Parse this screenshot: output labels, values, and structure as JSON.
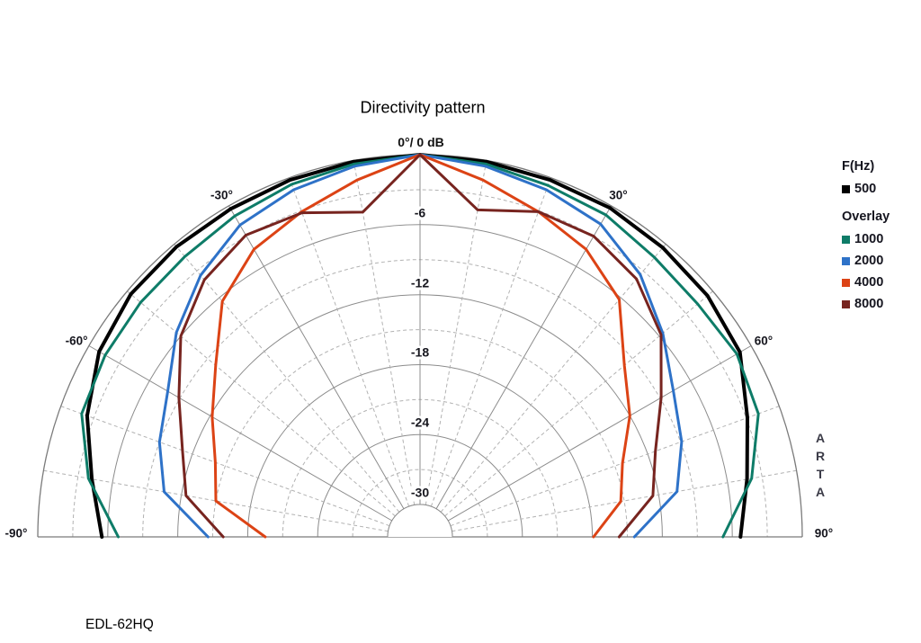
{
  "title": "Directivity pattern",
  "footer_label": "EDL-62HQ",
  "watermark": "ARTA",
  "legend": {
    "primary_heading": "F(Hz)",
    "primary_items": [
      {
        "label": "500",
        "color": "#000000"
      }
    ],
    "overlay_heading": "Overlay",
    "overlay_items": [
      {
        "label": "1000",
        "color": "#0e7c68"
      },
      {
        "label": "2000",
        "color": "#2e72c8"
      },
      {
        "label": "4000",
        "color": "#dc4315"
      },
      {
        "label": "8000",
        "color": "#77241f"
      }
    ]
  },
  "chart_data": {
    "type": "line",
    "subtype": "polar-directivity-half",
    "title": "Directivity pattern",
    "apex_label": "0°/ 0 dB",
    "angle_axis": {
      "unit": "deg",
      "range": [
        -90,
        90
      ],
      "solid_spokes_deg": [
        -90,
        -60,
        -30,
        0,
        30,
        60,
        90
      ],
      "dashed_spokes_deg": [
        -80,
        -70,
        -50,
        -40,
        -20,
        -10,
        10,
        20,
        40,
        50,
        70,
        80
      ],
      "tick_labels": [
        {
          "angle": -90,
          "text": "-90°"
        },
        {
          "angle": -60,
          "text": "-60°"
        },
        {
          "angle": -30,
          "text": "-30°"
        },
        {
          "angle": 30,
          "text": "30°"
        },
        {
          "angle": 60,
          "text": "60°"
        },
        {
          "angle": 90,
          "text": "90°"
        }
      ]
    },
    "db_axis": {
      "unit": "dB",
      "max": 0,
      "min": -30,
      "solid_rings_db": [
        -6,
        -12,
        -18,
        -24,
        -30
      ],
      "dashed_rings_db": [
        -3,
        -9,
        -15,
        -21,
        -27
      ],
      "ring_labels": [
        {
          "db": -6,
          "text": "-6"
        },
        {
          "db": -12,
          "text": "-12"
        },
        {
          "db": -18,
          "text": "-18"
        },
        {
          "db": -24,
          "text": "-24"
        },
        {
          "db": -30,
          "text": "-30"
        }
      ]
    },
    "grid": {
      "solid_color": "#8c8c8c",
      "dashed_color": "#b2b2b2",
      "outline_color": "#7a7a7a"
    },
    "angles_deg": [
      -90,
      -80,
      -70,
      -60,
      -50,
      -40,
      -30,
      -20,
      -10,
      0,
      10,
      20,
      30,
      40,
      50,
      60,
      70,
      80,
      90
    ],
    "series": [
      {
        "name": "500",
        "freq_hz": 500,
        "color": "#000000",
        "width": 4,
        "values_db": [
          -5.5,
          -4.2,
          -2.4,
          -1.0,
          -0.4,
          -0.3,
          -0.3,
          -0.2,
          -0.1,
          0,
          -0.1,
          -0.2,
          -0.2,
          -0.4,
          -0.6,
          -1.1,
          -2.9,
          -4.3,
          -5.3
        ]
      },
      {
        "name": "1000",
        "freq_hz": 1000,
        "color": "#0e7c68",
        "width": 3,
        "values_db": [
          -6.9,
          -3.9,
          -1.9,
          -1.6,
          -1.5,
          -1.4,
          -1.0,
          -0.6,
          -0.3,
          0,
          -0.3,
          -0.7,
          -0.9,
          -1.5,
          -1.7,
          -1.4,
          -1.9,
          -3.9,
          -6.8
        ]
      },
      {
        "name": "2000",
        "freq_hz": 2000,
        "color": "#2e72c8",
        "width": 3,
        "values_db": [
          -14.6,
          -10.5,
          -9.0,
          -7.8,
          -5.5,
          -3.5,
          -1.9,
          -1.1,
          -0.5,
          0,
          -0.5,
          -1.1,
          -1.8,
          -3.4,
          -5.6,
          -7.7,
          -8.9,
          -10.4,
          -14.4
        ]
      },
      {
        "name": "4000",
        "freq_hz": 4000,
        "color": "#dc4315",
        "width": 3,
        "values_db": [
          -19.5,
          -15.0,
          -14.1,
          -12.2,
          -9.9,
          -6.4,
          -4.3,
          -3.1,
          -1.7,
          0,
          -1.7,
          -3.1,
          -4.3,
          -6.2,
          -9.9,
          -12.0,
          -14.3,
          -15.3,
          -17.9
        ]
      },
      {
        "name": "8000",
        "freq_hz": 8000,
        "color": "#77241f",
        "width": 3,
        "values_db": [
          -15.9,
          -12.4,
          -11.1,
          -8.9,
          -6.0,
          -4.0,
          -2.9,
          -3.2,
          -4.5,
          0,
          -4.3,
          -3.1,
          -3.0,
          -3.9,
          -5.8,
          -8.9,
          -11.3,
          -12.5,
          -15.7
        ]
      }
    ],
    "legend_position": "right"
  }
}
